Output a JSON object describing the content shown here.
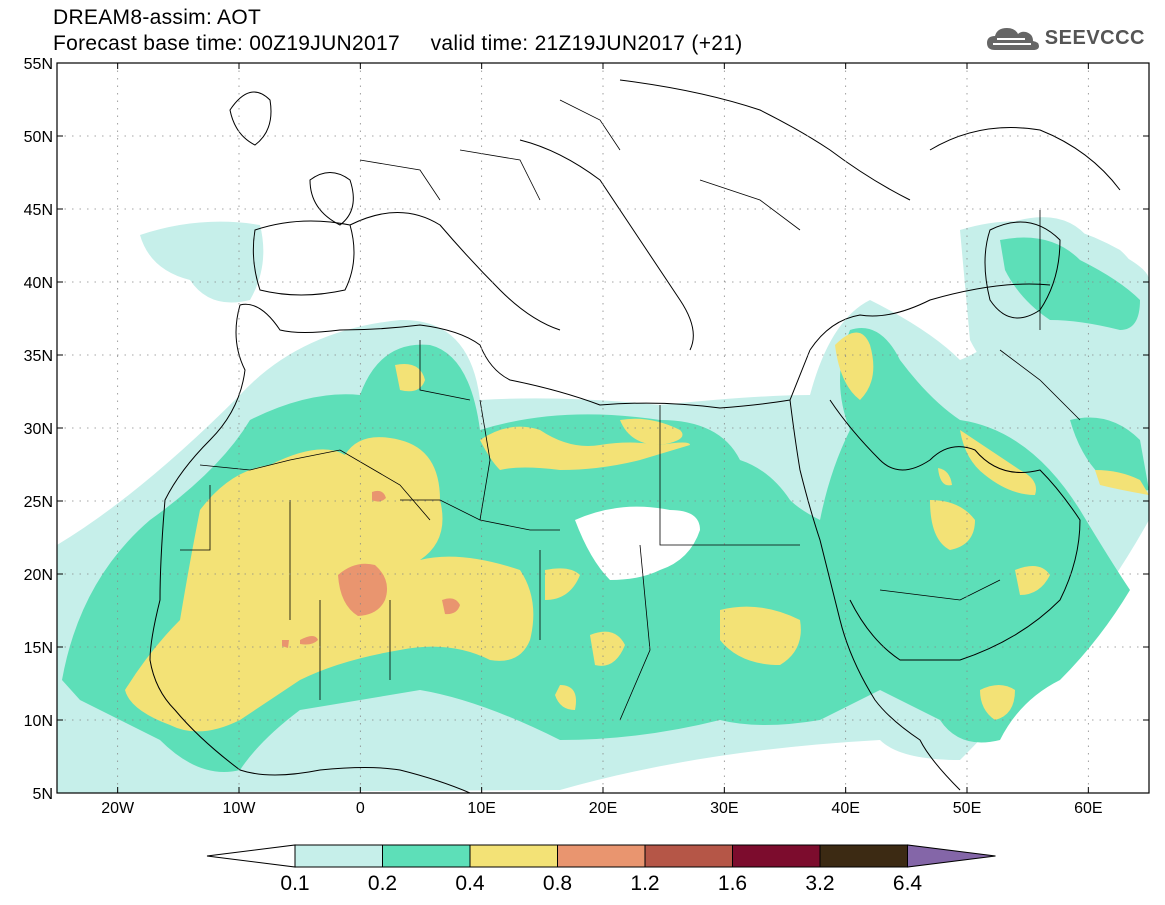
{
  "title": {
    "line1": "DREAM8-assim: AOT",
    "line2": "Forecast base time: 00Z19JUN2017     valid time: 21Z19JUN2017 (+21)"
  },
  "logo": {
    "text": "SEEVCCC",
    "icon": "cloud-icon",
    "color": "#555555"
  },
  "map": {
    "lon_range": [
      -25,
      65
    ],
    "lat_range": [
      5,
      55
    ],
    "lat_ticks": [
      "5N",
      "10N",
      "15N",
      "20N",
      "25N",
      "30N",
      "35N",
      "40N",
      "45N",
      "50N",
      "55N"
    ],
    "lon_ticks": [
      "20W",
      "10W",
      "0",
      "10E",
      "20E",
      "30E",
      "40E",
      "50E",
      "60E"
    ],
    "gridlines": "dotted"
  },
  "colorbar": {
    "labels": [
      "0.1",
      "0.2",
      "0.4",
      "0.8",
      "1.2",
      "1.6",
      "3.2",
      "6.4"
    ],
    "colors": [
      "#ffffff",
      "#c6efea",
      "#5ddfb8",
      "#f3e276",
      "#e9956f",
      "#b55647",
      "#7c0c2d",
      "#3c2a13",
      "#8466a8"
    ]
  }
}
